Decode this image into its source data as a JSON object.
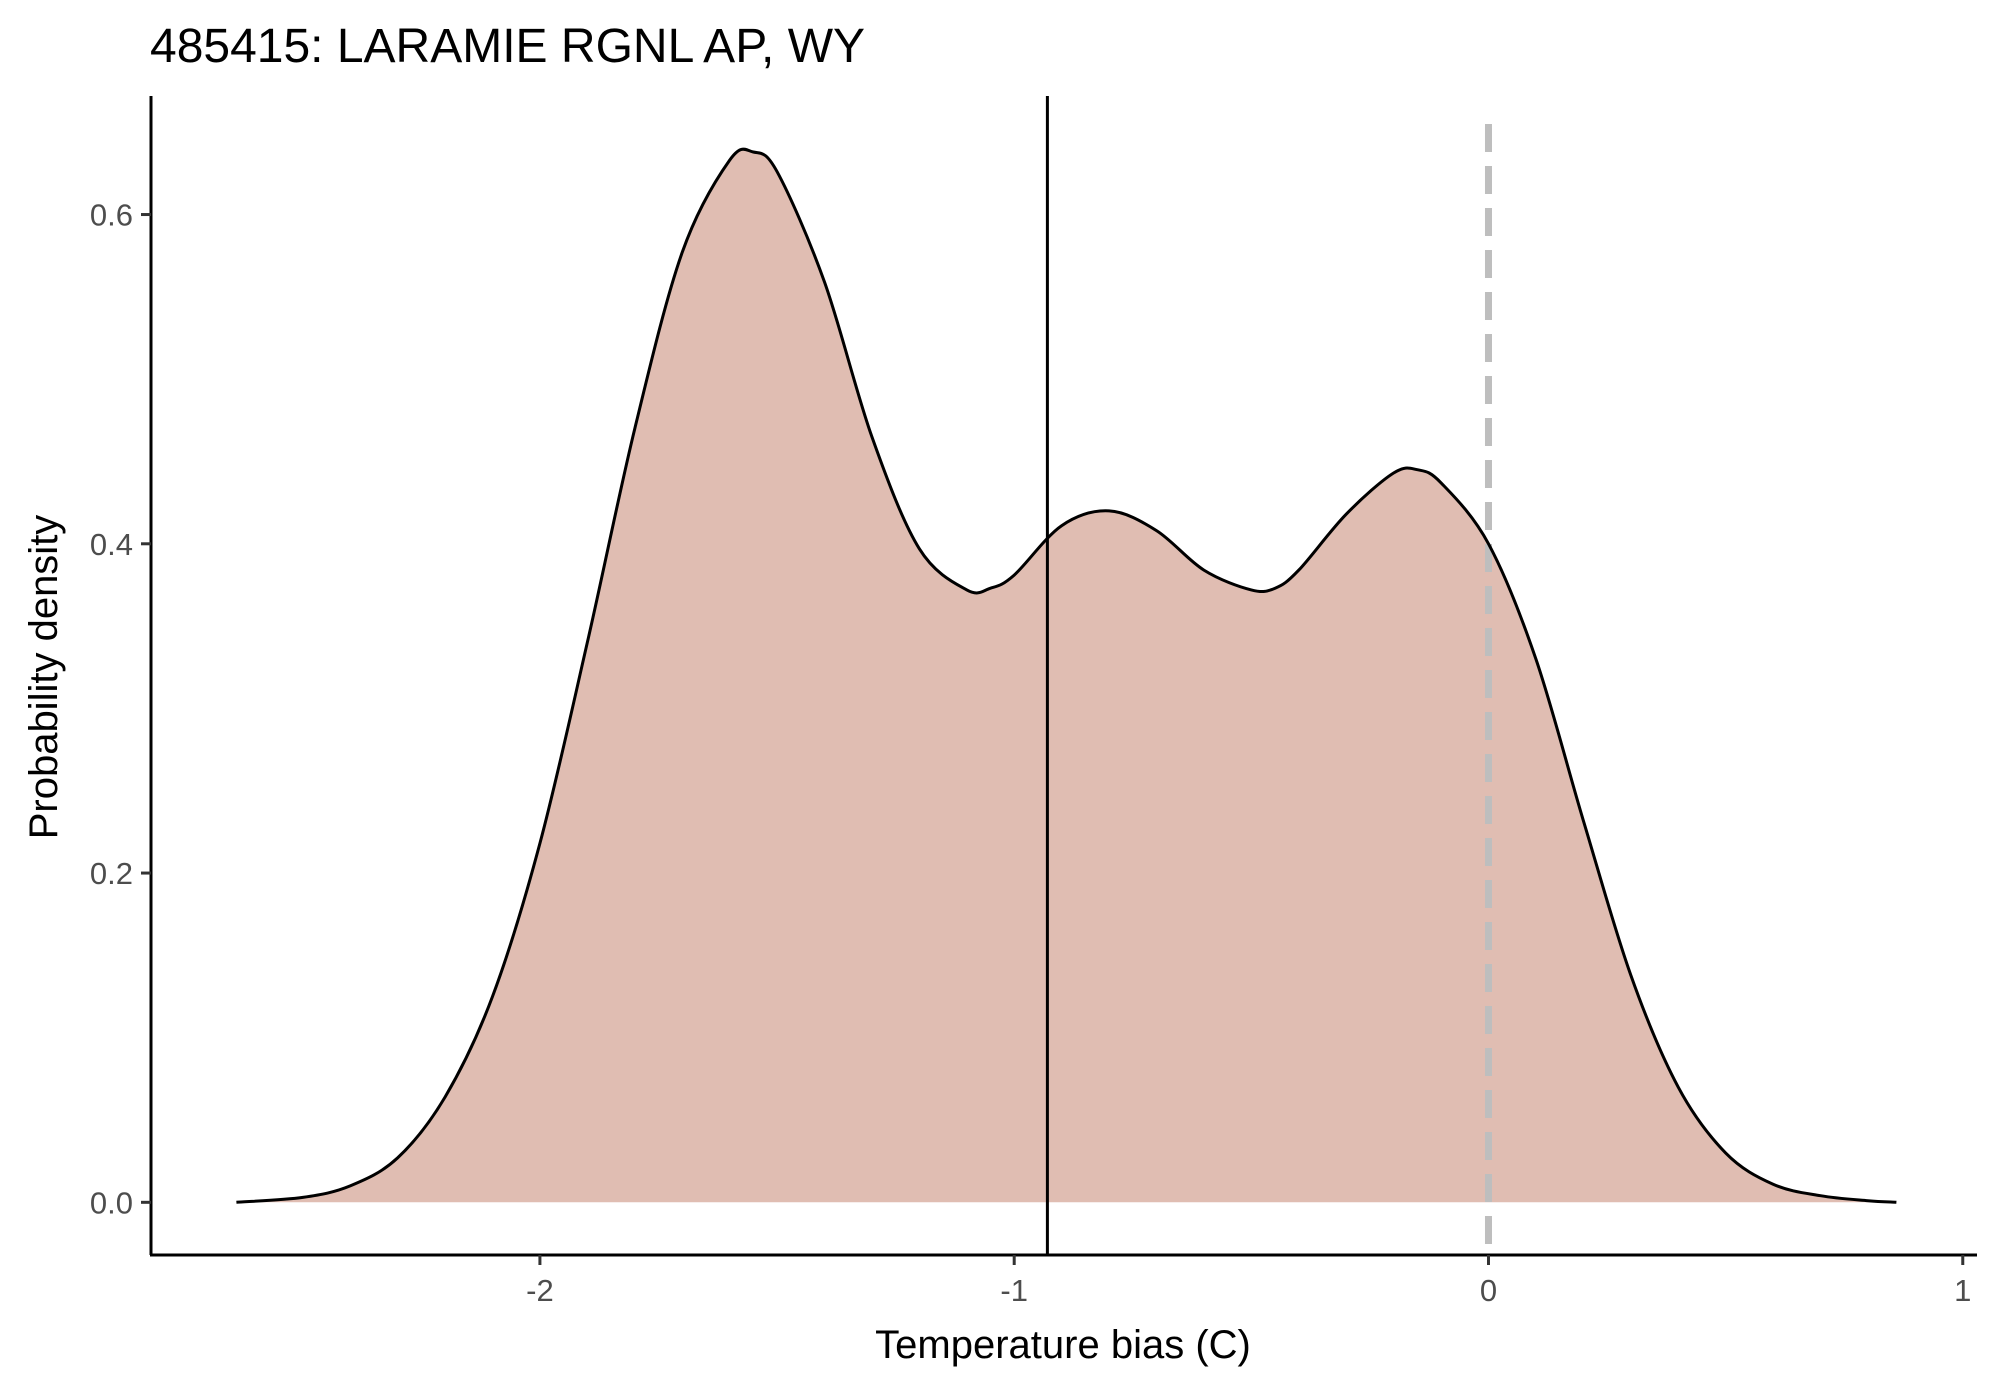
{
  "chart_data": {
    "type": "area",
    "title": "485415: LARAMIE RGNL AP, WY",
    "xlabel": "Temperature bias (C)",
    "ylabel": "Probability density",
    "xlim": [
      -2.82,
      1.03
    ],
    "ylim": [
      -0.032,
      0.672
    ],
    "x_ticks": [
      -2,
      -1,
      0,
      1
    ],
    "x_tick_labels": [
      "-2",
      "-1",
      "0",
      "1"
    ],
    "y_ticks": [
      0.0,
      0.2,
      0.4,
      0.6
    ],
    "y_tick_labels": [
      "0.0",
      "0.2",
      "0.4",
      "0.6"
    ],
    "grid": false,
    "legend": "none",
    "fill_color": "#e0bdb2",
    "line_color": "#000000",
    "reference_lines": [
      {
        "x": -0.93,
        "style": "solid",
        "color": "#000000"
      },
      {
        "x": 0.0,
        "style": "dashed",
        "color": "#bebebe"
      }
    ],
    "series": [
      {
        "x": [
          -2.64,
          -2.5,
          -2.4,
          -2.3,
          -2.2,
          -2.1,
          -2.0,
          -1.9,
          -1.8,
          -1.7,
          -1.6,
          -1.55,
          -1.5,
          -1.4,
          -1.3,
          -1.2,
          -1.1,
          -1.05,
          -1.0,
          -0.9,
          -0.8,
          -0.7,
          -0.6,
          -0.5,
          -0.45,
          -0.4,
          -0.3,
          -0.2,
          -0.15,
          -0.1,
          0.0,
          0.1,
          0.2,
          0.3,
          0.4,
          0.5,
          0.6,
          0.7,
          0.8,
          0.86
        ],
        "values": [
          0.0,
          0.003,
          0.01,
          0.027,
          0.064,
          0.125,
          0.218,
          0.34,
          0.47,
          0.577,
          0.633,
          0.638,
          0.626,
          0.559,
          0.465,
          0.397,
          0.372,
          0.373,
          0.381,
          0.411,
          0.42,
          0.408,
          0.384,
          0.372,
          0.373,
          0.384,
          0.418,
          0.443,
          0.445,
          0.437,
          0.4,
          0.33,
          0.232,
          0.138,
          0.07,
          0.03,
          0.011,
          0.004,
          0.001,
          0.0
        ]
      }
    ]
  }
}
